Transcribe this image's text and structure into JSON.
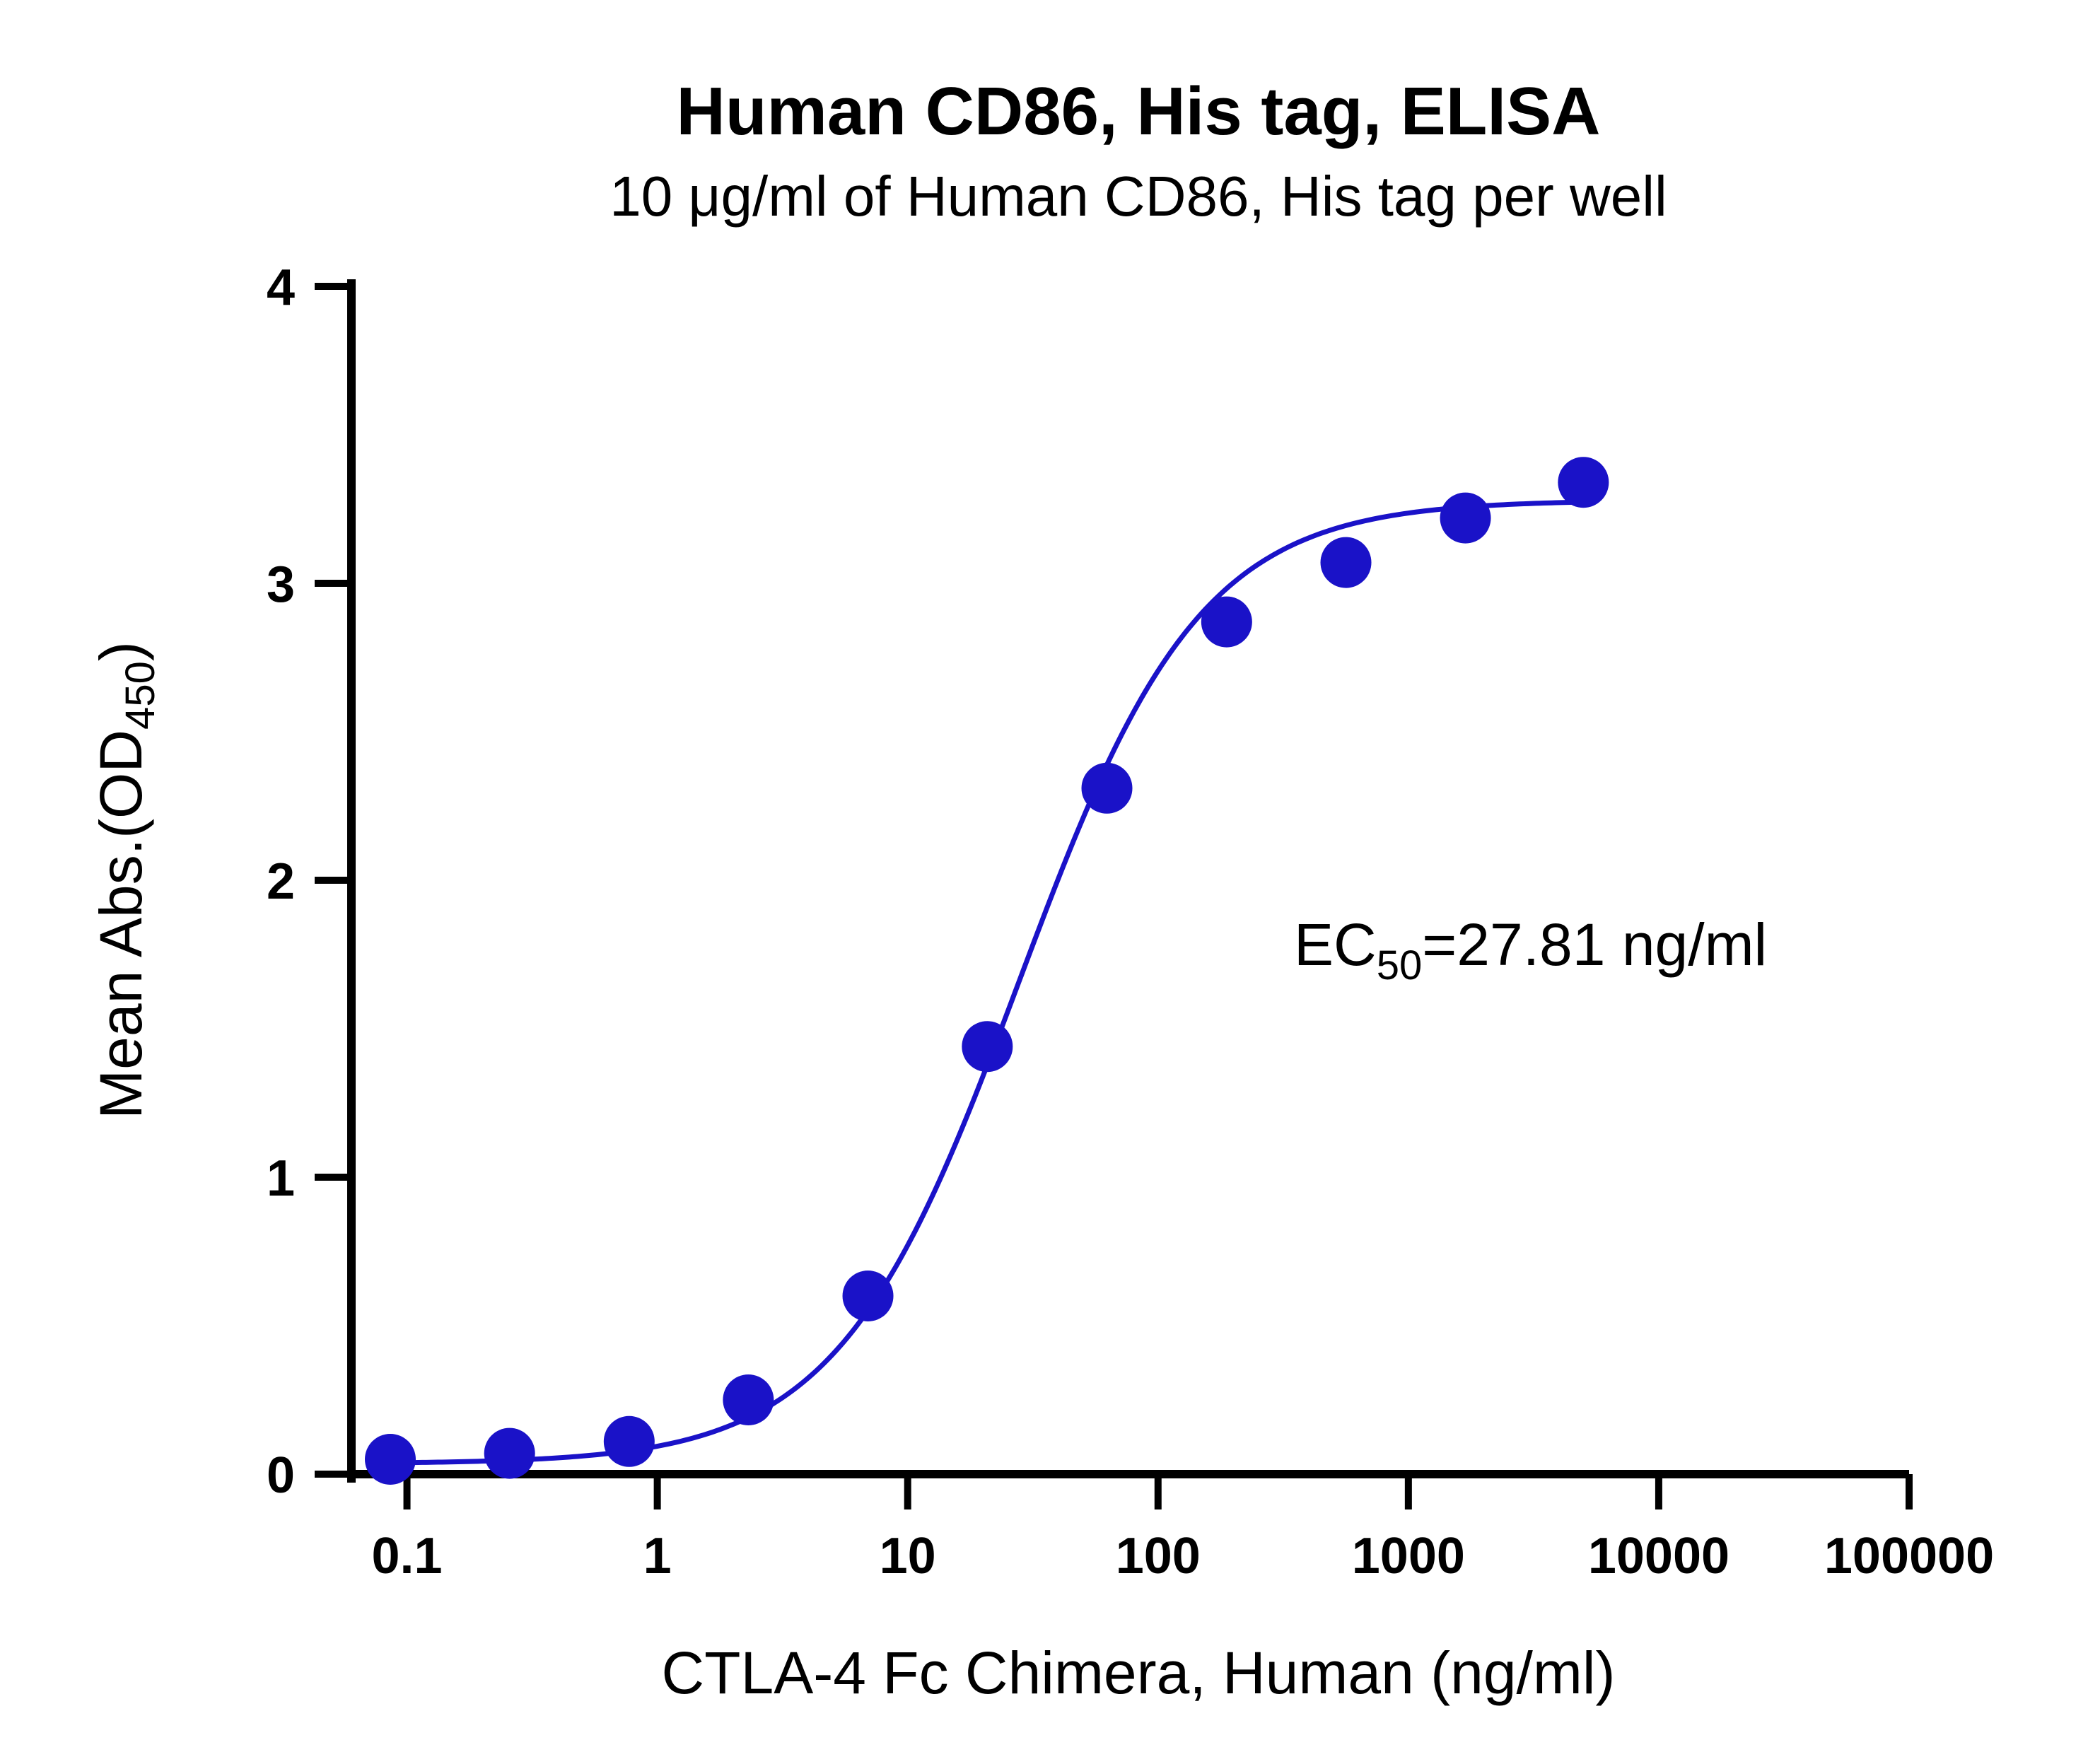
{
  "chart_data": {
    "type": "scatter",
    "title": "Human CD86, His tag, ELISA",
    "subtitle": "10 μg/ml of Human CD86, His tag per well",
    "xlabel": "CTLA-4 Fc Chimera, Human (ng/ml)",
    "ylabel": {
      "main": "Mean Abs.(OD",
      "sub": "450",
      "close": ")"
    },
    "x_scale": "log",
    "xlim": [
      0.06,
      100000
    ],
    "ylim": [
      0,
      4
    ],
    "x_ticks": [
      0.1,
      1,
      10,
      100,
      1000,
      10000,
      100000
    ],
    "x_tick_labels": [
      "0.1",
      "1",
      "10",
      "100",
      "1000",
      "10000",
      "100000"
    ],
    "y_ticks": [
      0,
      1,
      2,
      3,
      4
    ],
    "y_tick_labels": [
      "0",
      "1",
      "2",
      "3",
      "4"
    ],
    "grid": false,
    "series": [
      {
        "color": "#1a12c8",
        "points": [
          {
            "x": 0.0858,
            "y": 0.05
          },
          {
            "x": 0.257,
            "y": 0.07
          },
          {
            "x": 0.772,
            "y": 0.11
          },
          {
            "x": 2.31,
            "y": 0.25
          },
          {
            "x": 6.94,
            "y": 0.6
          },
          {
            "x": 20.8,
            "y": 1.44
          },
          {
            "x": 62.5,
            "y": 2.31
          },
          {
            "x": 188,
            "y": 2.87
          },
          {
            "x": 563,
            "y": 3.07
          },
          {
            "x": 1690,
            "y": 3.22
          },
          {
            "x": 5000,
            "y": 3.34
          }
        ],
        "fit": {
          "model": "4PL",
          "bottom": 0.035,
          "top": 3.28,
          "ec50": 27.81,
          "hill": 1.2,
          "x_range": [
            0.0858,
            5000
          ]
        }
      }
    ],
    "annotation": {
      "main": "EC",
      "sub": "50",
      "rest": "=27.81 ng/ml"
    }
  }
}
